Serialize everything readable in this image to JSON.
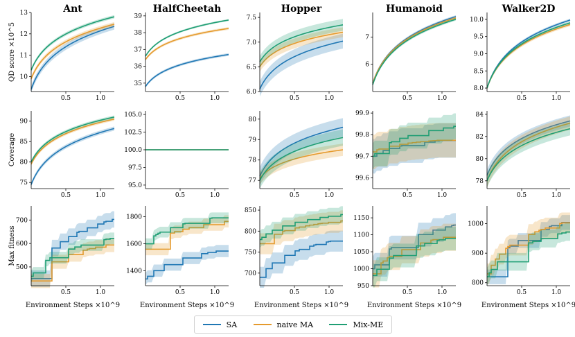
{
  "colors": {
    "SA": "#1f77b4",
    "naive MA": "#e59a2d",
    "Mix-ME": "#1f9e74"
  },
  "legend": {
    "items": [
      "SA",
      "naive MA",
      "Mix-ME"
    ]
  },
  "chart_data": {
    "type": "line",
    "x_shared": {
      "xlabel": "Environment Steps",
      "x_exponent": "×10^9",
      "xlim": [
        0,
        1.2
      ],
      "xticks": [
        "0.5",
        "1.0"
      ]
    },
    "column_titles": [
      "Ant",
      "HalfCheetah",
      "Hopper",
      "Humanoid",
      "Walker2D"
    ],
    "row_labels": [
      "QD score ×10^5",
      "Coverage",
      "Max fitness"
    ],
    "panels": [
      {
        "env": "Ant",
        "metric": "QD score ×10^5",
        "ylim": [
          9.3,
          13
        ],
        "yticks": [
          "10",
          "11",
          "12",
          "13"
        ],
        "shape": "log",
        "series": [
          {
            "name": "SA",
            "start": 9.4,
            "end": 12.35,
            "band": 0.15
          },
          {
            "name": "naive MA",
            "start": 9.9,
            "end": 12.45,
            "band": 0.1
          },
          {
            "name": "Mix-ME",
            "start": 10.3,
            "end": 12.8,
            "band": 0.08
          }
        ]
      },
      {
        "env": "HalfCheetah",
        "metric": "QD score ×10^5",
        "ylim": [
          34.5,
          39.2
        ],
        "yticks": [
          "35",
          "36",
          "37",
          "38",
          "39"
        ],
        "shape": "log",
        "series": [
          {
            "name": "SA",
            "start": 34.8,
            "end": 36.7,
            "band": 0.08
          },
          {
            "name": "naive MA",
            "start": 36.4,
            "end": 38.25,
            "band": 0.08
          },
          {
            "name": "Mix-ME",
            "start": 36.6,
            "end": 38.75,
            "band": 0.06
          }
        ]
      },
      {
        "env": "Hopper",
        "metric": "QD score ×10^5",
        "ylim": [
          6.0,
          7.6
        ],
        "yticks": [
          "6.0",
          "6.5",
          "7.0",
          "7.5"
        ],
        "shape": "log",
        "series": [
          {
            "name": "SA",
            "start": 6.05,
            "end": 7.02,
            "band": 0.15
          },
          {
            "name": "naive MA",
            "start": 6.5,
            "end": 7.2,
            "band": 0.1
          },
          {
            "name": "Mix-ME",
            "start": 6.6,
            "end": 7.35,
            "band": 0.12
          }
        ]
      },
      {
        "env": "Humanoid",
        "metric": "QD score ×10^5",
        "ylim": [
          5.0,
          7.9
        ],
        "yticks": [
          "6",
          "7"
        ],
        "shape": "log",
        "series": [
          {
            "name": "SA",
            "start": 5.3,
            "end": 7.75,
            "band": 0.05
          },
          {
            "name": "naive MA",
            "start": 5.3,
            "end": 7.7,
            "band": 0.05
          },
          {
            "name": "Mix-ME",
            "start": 5.25,
            "end": 7.65,
            "band": 0.05
          }
        ]
      },
      {
        "env": "Walker2D",
        "metric": "QD score ×10^5",
        "ylim": [
          7.9,
          10.2
        ],
        "yticks": [
          "8.0",
          "8.5",
          "9.0",
          "9.5",
          "10.0"
        ],
        "shape": "log",
        "series": [
          {
            "name": "SA",
            "start": 8.0,
            "end": 9.98,
            "band": 0.04
          },
          {
            "name": "naive MA",
            "start": 8.0,
            "end": 9.85,
            "band": 0.05
          },
          {
            "name": "Mix-ME",
            "start": 8.0,
            "end": 9.9,
            "band": 0.04
          }
        ]
      },
      {
        "env": "Ant",
        "metric": "Coverage",
        "ylim": [
          73.5,
          92.5
        ],
        "yticks": [
          "75",
          "80",
          "85",
          "90"
        ],
        "shape": "log",
        "series": [
          {
            "name": "SA",
            "start": 74.5,
            "end": 88.2,
            "band": 0.5
          },
          {
            "name": "naive MA",
            "start": 79.5,
            "end": 90.5,
            "band": 0.4
          },
          {
            "name": "Mix-ME",
            "start": 80.0,
            "end": 91.0,
            "band": 0.4
          }
        ]
      },
      {
        "env": "HalfCheetah",
        "metric": "Coverage",
        "ylim": [
          94.5,
          105.5
        ],
        "yticks": [
          "95.0",
          "97.5",
          "100.0",
          "102.5",
          "105.0"
        ],
        "shape": "flat",
        "series": [
          {
            "name": "SA",
            "start": 100.0,
            "end": 100.0,
            "band": 0
          },
          {
            "name": "naive MA",
            "start": 100.0,
            "end": 100.0,
            "band": 0
          },
          {
            "name": "Mix-ME",
            "start": 100.0,
            "end": 100.0,
            "band": 0
          }
        ]
      },
      {
        "env": "Hopper",
        "metric": "Coverage",
        "ylim": [
          76.6,
          80.4
        ],
        "yticks": [
          "77",
          "78",
          "79",
          "80"
        ],
        "shape": "log",
        "series": [
          {
            "name": "SA",
            "start": 77.2,
            "end": 79.6,
            "band": 0.45
          },
          {
            "name": "naive MA",
            "start": 77.1,
            "end": 78.5,
            "band": 0.3
          },
          {
            "name": "Mix-ME",
            "start": 77.0,
            "end": 79.1,
            "band": 0.4
          }
        ]
      },
      {
        "env": "Humanoid",
        "metric": "Coverage",
        "ylim": [
          99.55,
          99.91
        ],
        "yticks": [
          "99.6",
          "99.7",
          "99.8",
          "99.9"
        ],
        "shape": "step",
        "series": [
          {
            "name": "SA",
            "start": 99.7,
            "end": 99.78,
            "band": 0.08
          },
          {
            "name": "naive MA",
            "start": 99.72,
            "end": 99.78,
            "band": 0.08
          },
          {
            "name": "Mix-ME",
            "start": 99.7,
            "end": 99.84,
            "band": 0.06
          }
        ]
      },
      {
        "env": "Walker2D",
        "metric": "Coverage",
        "ylim": [
          77.3,
          84.3
        ],
        "yticks": [
          "78",
          "80",
          "82",
          "84"
        ],
        "shape": "log",
        "series": [
          {
            "name": "SA",
            "start": 78.5,
            "end": 83.4,
            "band": 0.5
          },
          {
            "name": "naive MA",
            "start": 78.0,
            "end": 83.2,
            "band": 0.6
          },
          {
            "name": "Mix-ME",
            "start": 78.0,
            "end": 82.7,
            "band": 0.6
          }
        ]
      },
      {
        "env": "Ant",
        "metric": "Max fitness",
        "ylim": [
          420,
          760
        ],
        "yticks": [
          "500",
          "600",
          "700"
        ],
        "shape": "steplog",
        "series": [
          {
            "name": "SA",
            "start": 450,
            "end": 705,
            "band": 35
          },
          {
            "name": "naive MA",
            "start": 440,
            "end": 600,
            "band": 30
          },
          {
            "name": "Mix-ME",
            "start": 460,
            "end": 625,
            "band": 25
          }
        ]
      },
      {
        "env": "HalfCheetah",
        "metric": "Max fitness",
        "ylim": [
          1290,
          1880
        ],
        "yticks": [
          "1400",
          "1600",
          "1800"
        ],
        "shape": "steplog",
        "series": [
          {
            "name": "SA",
            "start": 1340,
            "end": 1560,
            "band": 45
          },
          {
            "name": "naive MA",
            "start": 1560,
            "end": 1770,
            "band": 45
          },
          {
            "name": "Mix-ME",
            "start": 1600,
            "end": 1810,
            "band": 40
          }
        ]
      },
      {
        "env": "Hopper",
        "metric": "Max fitness",
        "ylim": [
          670,
          860
        ],
        "yticks": [
          "700",
          "750",
          "800",
          "850"
        ],
        "shape": "steplog",
        "series": [
          {
            "name": "SA",
            "start": 690,
            "end": 782,
            "band": 25
          },
          {
            "name": "naive MA",
            "start": 770,
            "end": 825,
            "band": 25
          },
          {
            "name": "Mix-ME",
            "start": 780,
            "end": 840,
            "band": 20
          }
        ]
      },
      {
        "env": "Humanoid",
        "metric": "Max fitness",
        "ylim": [
          950,
          1185
        ],
        "yticks": [
          "950",
          "1000",
          "1050",
          "1100",
          "1150"
        ],
        "shape": "steplog",
        "series": [
          {
            "name": "SA",
            "start": 1000,
            "end": 1130,
            "band": 35
          },
          {
            "name": "naive MA",
            "start": 985,
            "end": 1100,
            "band": 40
          },
          {
            "name": "Mix-ME",
            "start": 980,
            "end": 1095,
            "band": 35
          }
        ]
      },
      {
        "env": "Walker2D",
        "metric": "Max fitness",
        "ylim": [
          790,
          1060
        ],
        "yticks": [
          "800",
          "900",
          "1000"
        ],
        "shape": "steplog",
        "series": [
          {
            "name": "SA",
            "start": 820,
            "end": 1012,
            "band": 25
          },
          {
            "name": "naive MA",
            "start": 830,
            "end": 1010,
            "band": 35
          },
          {
            "name": "Mix-ME",
            "start": 820,
            "end": 975,
            "band": 30
          }
        ]
      }
    ]
  }
}
